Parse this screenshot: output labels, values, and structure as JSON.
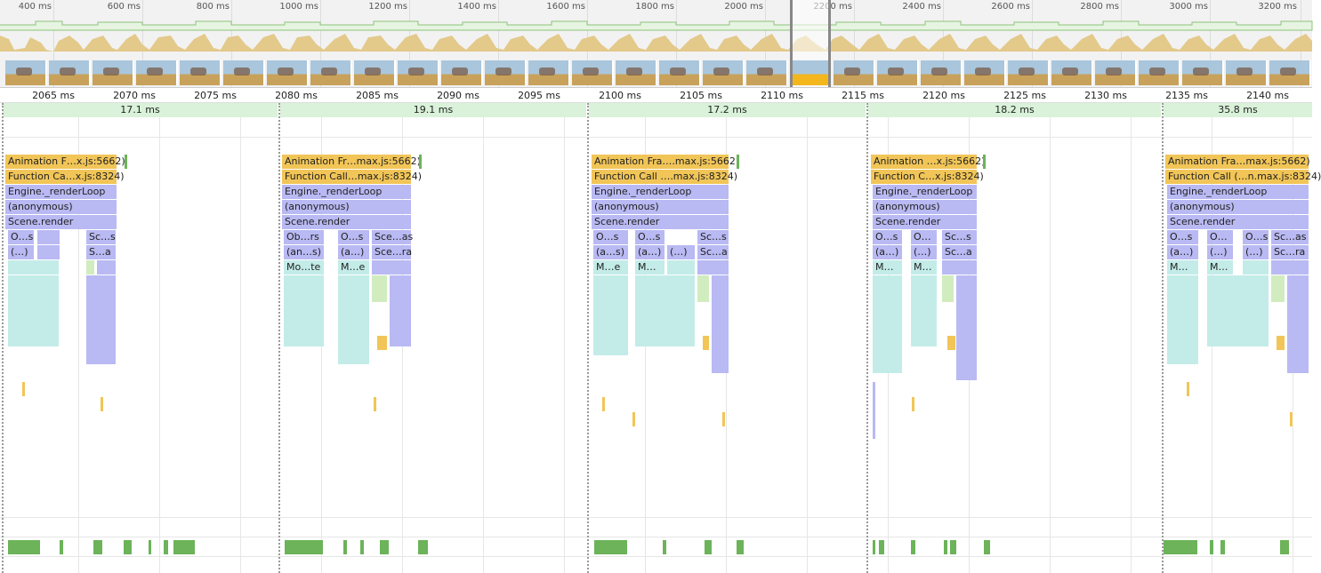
{
  "overview": {
    "time_labels": [
      "400 ms",
      "600 ms",
      "800 ms",
      "1000 ms",
      "1200 ms",
      "1400 ms",
      "1600 ms",
      "1800 ms",
      "2000 ms",
      "2200 ms",
      "2400 ms",
      "2600 ms",
      "2800 ms",
      "3000 ms",
      "3200 ms"
    ]
  },
  "ruler": {
    "labels": [
      "2065 ms",
      "2070 ms",
      "2075 ms",
      "2080 ms",
      "2085 ms",
      "2090 ms",
      "2095 ms",
      "2100 ms",
      "2105 ms",
      "2110 ms",
      "2115 ms",
      "2120 ms",
      "2125 ms",
      "2130 ms",
      "2135 ms",
      "2140 ms"
    ]
  },
  "frames": [
    "17.1 ms",
    "19.1 ms",
    "17.2 ms",
    "18.2 ms",
    "35.8 ms"
  ],
  "flame": [
    {
      "animation": "Animation F…x.js:5662)",
      "function_call": "Function Ca…x.js:8324)",
      "render_loop": "Engine._renderLoop",
      "anonymous": "(anonymous)",
      "scene_render": "Scene.render",
      "row6": [
        "O…s",
        "",
        "Sc…s"
      ],
      "row7": [
        "(…)",
        "",
        "S…a"
      ],
      "row8": [
        "",
        ""
      ]
    },
    {
      "animation": "Animation Fr…max.js:5662)",
      "function_call": "Function Call…max.js:8324)",
      "render_loop": "Engine._renderLoop",
      "anonymous": "(anonymous)",
      "scene_render": "Scene.render",
      "row6": [
        "Ob…rs",
        "O…s",
        "Sce…as"
      ],
      "row7": [
        "(an…s)",
        "(a…)",
        "Sce…ra"
      ],
      "row8": [
        "Mo…te",
        "M…e"
      ]
    },
    {
      "animation": "Animation Fra….max.js:5662)",
      "function_call": "Function Call ….max.js:8324)",
      "render_loop": "Engine._renderLoop",
      "anonymous": "(anonymous)",
      "scene_render": "Scene.render",
      "row6": [
        "O…s",
        "O…s",
        "Sc…s"
      ],
      "row7": [
        "(a…s)",
        "(a…)",
        "(…)",
        "Sc…a"
      ],
      "row8": [
        "M…e",
        "M…"
      ]
    },
    {
      "animation": "Animation …x.js:5662)",
      "function_call": "Function C…x.js:8324)",
      "render_loop": "Engine._renderLoop",
      "anonymous": "(anonymous)",
      "scene_render": "Scene.render",
      "row6": [
        "O…s",
        "O…",
        "Sc…s"
      ],
      "row7": [
        "(a…)",
        "(…)",
        "Sc…a"
      ],
      "row8": [
        "M…",
        "M…"
      ]
    },
    {
      "animation": "Animation Fra…max.js:5662)",
      "function_call": "Function Call (…n.max.js:8324)",
      "render_loop": "Engine._renderLoop",
      "anonymous": "(anonymous)",
      "scene_render": "Scene.render",
      "row6": [
        "O…s",
        "O…",
        "O…s",
        "Sc…as"
      ],
      "row7": [
        "(a…)",
        "(…)",
        "(…)",
        "Sc…ra"
      ],
      "row8": [
        "M…",
        "M…"
      ]
    }
  ],
  "colors": {
    "script": "#f1c557",
    "rendering": "#b9b9f3",
    "painting_teal": "#c3ece8",
    "gpu": "#6cb35a",
    "frame": "#d9f2d9"
  }
}
